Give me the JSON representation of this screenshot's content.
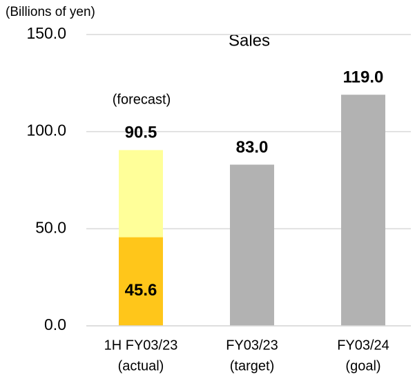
{
  "chart_data": {
    "type": "bar",
    "title": "Sales",
    "y_label": "(Billions of yen)",
    "annotation": "(forecast)",
    "categories": [
      [
        "1H FY03/23",
        "(actual)"
      ],
      [
        "FY03/23",
        "(target)"
      ],
      [
        "FY03/24",
        "(goal)"
      ]
    ],
    "values": [
      90.5,
      83.0,
      119.0
    ],
    "value_labels": [
      "90.5",
      "83.0",
      "119.0"
    ],
    "colors": [
      "#FFFF99",
      "#B2B2B2",
      "#B2B2B2"
    ],
    "overlay": {
      "values": [
        45.6,
        null,
        null
      ],
      "value_labels": [
        "45.6",
        null,
        null
      ],
      "color": "#FFC61A"
    },
    "ylim": [
      0,
      150
    ],
    "yticks": [
      {
        "value": 0,
        "label": "0.0"
      },
      {
        "value": 50,
        "label": "50.0"
      },
      {
        "value": 100,
        "label": "100.0"
      },
      {
        "value": 150,
        "label": "150.0"
      }
    ],
    "grid": true
  }
}
